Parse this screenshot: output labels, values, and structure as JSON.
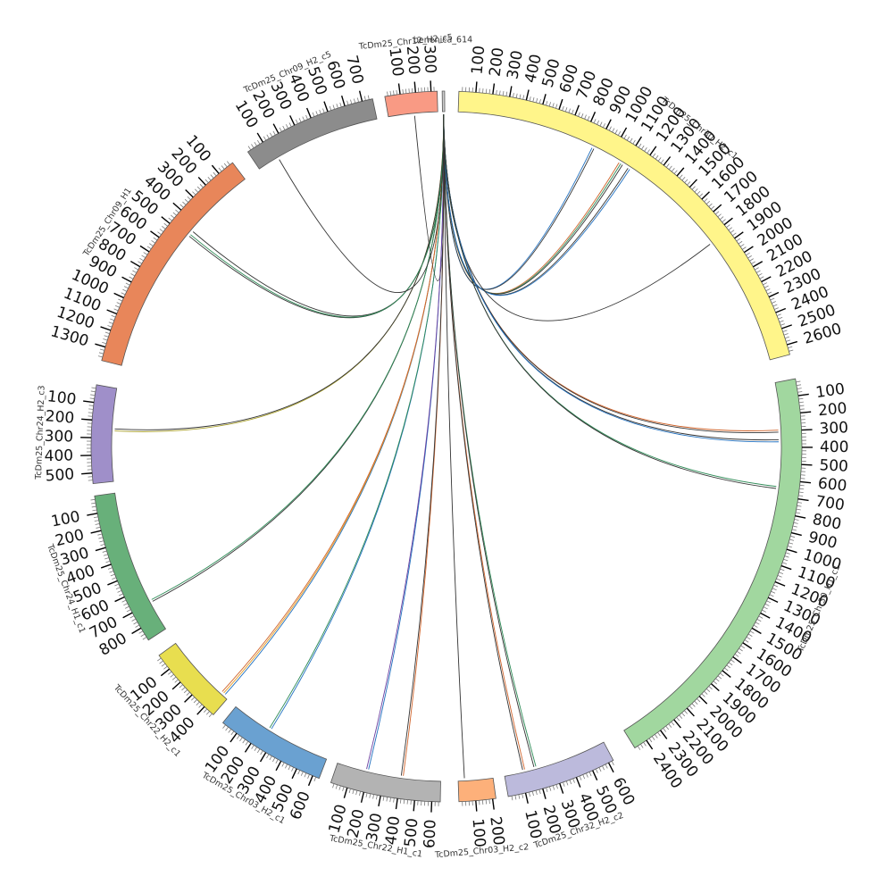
{
  "chart_data": {
    "type": "chord",
    "segments": [
      {
        "name": "TcDm25_Chr30_H2_c1",
        "length": 2660,
        "color": "#fff58a",
        "ticks": [
          100,
          200,
          300,
          400,
          500,
          600,
          700,
          800,
          900,
          1000,
          1100,
          1200,
          1300,
          1400,
          1500,
          1600,
          1700,
          1800,
          1900,
          2000,
          2100,
          2200,
          2300,
          2400,
          2500,
          2600
        ]
      },
      {
        "name": "TcDm25_Chr30_H1_c1",
        "length": 2480,
        "color": "#a1d79f",
        "ticks": [
          100,
          200,
          300,
          400,
          500,
          600,
          700,
          800,
          900,
          1000,
          1100,
          1200,
          1300,
          1400,
          1500,
          1600,
          1700,
          1800,
          1900,
          2000,
          2100,
          2200,
          2300,
          2400
        ]
      },
      {
        "name": "TcDm25_Chr32_H2_c2",
        "length": 630,
        "color": "#bcbadc",
        "ticks": [
          100,
          200,
          300,
          400,
          500,
          600
        ]
      },
      {
        "name": "TcDm25_Chr03_H2_c2",
        "length": 220,
        "color": "#fdb07a",
        "ticks": [
          100,
          200
        ]
      },
      {
        "name": "TcDm25_Chr22_H1_c1",
        "length": 650,
        "color": "#b3b3b3",
        "ticks": [
          100,
          200,
          300,
          400,
          500,
          600
        ]
      },
      {
        "name": "TcDm25_Chr03_H2_c1",
        "length": 640,
        "color": "#6aa1d1",
        "ticks": [
          100,
          200,
          300,
          400,
          500,
          600
        ]
      },
      {
        "name": "TcDm25_Chr22_H2_c1",
        "length": 470,
        "color": "#e8de4f",
        "ticks": [
          100,
          200,
          300,
          400
        ]
      },
      {
        "name": "TcDm25_Chr24_H1_c1",
        "length": 880,
        "color": "#68b07a",
        "ticks": [
          100,
          200,
          300,
          400,
          500,
          600,
          700,
          800
        ]
      },
      {
        "name": "TcDm25_Chr24_H2_c3",
        "length": 560,
        "color": "#9f8fc9",
        "ticks": [
          100,
          200,
          300,
          400,
          500
        ]
      },
      {
        "name": "TcDm25_Chr09_H1",
        "length": 1380,
        "color": "#e8865a",
        "ticks": [
          100,
          200,
          300,
          400,
          500,
          600,
          700,
          800,
          900,
          1000,
          1100,
          1200,
          1300
        ]
      },
      {
        "name": "TcDm25_Chr09_H2_c5",
        "length": 760,
        "color": "#8c8c8c",
        "ticks": [
          100,
          200,
          300,
          400,
          500,
          600,
          700
        ]
      },
      {
        "name": "TcDm25_Chr12_H2_c5",
        "length": 340,
        "color": "#f99a84",
        "ticks": [
          100,
          200,
          300
        ]
      },
      {
        "name": "benenica_614",
        "length": 10,
        "color": "#cccccc",
        "ticks": []
      }
    ],
    "links": [
      {
        "from": "benenica_614",
        "to": "TcDm25_Chr30_H2_c1",
        "to_pos": 880,
        "colors": [
          "#1f6fbf",
          "#333333"
        ]
      },
      {
        "from": "benenica_614",
        "to": "TcDm25_Chr30_H2_c1",
        "to_pos": 1080,
        "colors": [
          "#d0632a",
          "#2e8b57",
          "#333333"
        ]
      },
      {
        "from": "benenica_614",
        "to": "TcDm25_Chr30_H2_c1",
        "to_pos": 1140,
        "colors": [
          "#333333",
          "#1f6fbf"
        ]
      },
      {
        "from": "benenica_614",
        "to": "TcDm25_Chr30_H2_c1",
        "to_pos": 1840,
        "colors": [
          "#333333"
        ]
      },
      {
        "from": "benenica_614",
        "to": "TcDm25_Chr30_H1_c1",
        "to_pos": 300,
        "colors": [
          "#d0632a",
          "#333333"
        ]
      },
      {
        "from": "benenica_614",
        "to": "TcDm25_Chr30_H1_c1",
        "to_pos": 360,
        "colors": [
          "#333333",
          "#1f6fbf"
        ]
      },
      {
        "from": "benenica_614",
        "to": "TcDm25_Chr30_H1_c1",
        "to_pos": 650,
        "colors": [
          "#2e8b57",
          "#333333"
        ]
      },
      {
        "from": "benenica_614",
        "to": "TcDm25_Chr32_H2_c2",
        "to_pos": 120,
        "colors": [
          "#d0632a",
          "#333333"
        ]
      },
      {
        "from": "benenica_614",
        "to": "TcDm25_Chr32_H2_c2",
        "to_pos": 190,
        "colors": [
          "#2e8b57",
          "#333333"
        ]
      },
      {
        "from": "benenica_614",
        "to": "TcDm25_Chr03_H2_c2",
        "to_pos": 40,
        "colors": [
          "#333333"
        ]
      },
      {
        "from": "benenica_614",
        "to": "TcDm25_Chr22_H1_c1",
        "to_pos": 190,
        "colors": [
          "#1f6fbf",
          "#6b3fa0"
        ]
      },
      {
        "from": "benenica_614",
        "to": "TcDm25_Chr22_H1_c1",
        "to_pos": 410,
        "colors": [
          "#d0632a",
          "#333333"
        ]
      },
      {
        "from": "benenica_614",
        "to": "TcDm25_Chr03_H2_c1",
        "to_pos": 250,
        "colors": [
          "#1f6fbf",
          "#2e8b57"
        ]
      },
      {
        "from": "benenica_614",
        "to": "TcDm25_Chr22_H2_c1",
        "to_pos": 430,
        "colors": [
          "#1f6fbf",
          "#e69b22",
          "#d0632a"
        ]
      },
      {
        "from": "benenica_614",
        "to": "TcDm25_Chr24_H1_c1",
        "to_pos": 690,
        "colors": [
          "#333333",
          "#2e8b57"
        ]
      },
      {
        "from": "benenica_614",
        "to": "TcDm25_Chr24_H2_c3",
        "to_pos": 250,
        "colors": [
          "#a89f2a",
          "#333333"
        ]
      },
      {
        "from": "benenica_614",
        "to": "TcDm25_Chr09_H1",
        "to_pos": 450,
        "colors": [
          "#333333"
        ]
      },
      {
        "from": "benenica_614",
        "to": "TcDm25_Chr09_H1",
        "to_pos": 480,
        "colors": [
          "#333333",
          "#2e8b57"
        ]
      },
      {
        "from": "benenica_614",
        "to": "TcDm25_Chr09_H2_c5",
        "to_pos": 130,
        "colors": [
          "#333333"
        ]
      },
      {
        "from": "benenica_614",
        "to": "TcDm25_Chr12_H2_c5",
        "to_pos": 180,
        "colors": [
          "#333333"
        ]
      }
    ]
  }
}
